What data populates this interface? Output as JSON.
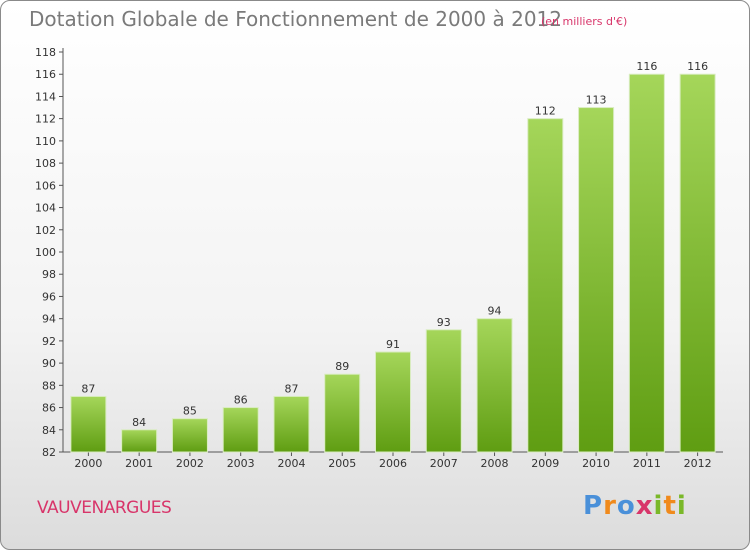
{
  "title": "Dotation Globale de Fonctionnement de 2000 à 2012",
  "subtitle": "(en milliers d'€)",
  "commune": "VAUVENARGUES",
  "logo": {
    "letters": [
      "P",
      "r",
      "o",
      "x",
      "i",
      "t",
      "i"
    ],
    "colors": [
      "#4a90d9",
      "#f08a1c",
      "#4a90d9",
      "#d8356a",
      "#7ab829",
      "#f08a1c",
      "#7ab829"
    ]
  },
  "colors": {
    "bar_light": "#a5d65a",
    "bar_dark": "#5f9d12",
    "accent": "#d8356a"
  },
  "chart_data": {
    "type": "bar",
    "categories": [
      "2000",
      "2001",
      "2002",
      "2003",
      "2004",
      "2005",
      "2006",
      "2007",
      "2008",
      "2009",
      "2010",
      "2011",
      "2012"
    ],
    "values": [
      87,
      84,
      85,
      86,
      87,
      89,
      91,
      93,
      94,
      112,
      113,
      116,
      116
    ],
    "data_labels": [
      "87",
      "84",
      "85",
      "86",
      "87",
      "89",
      "91",
      "93",
      "94",
      "112",
      "113",
      "116",
      "116"
    ],
    "ylim": [
      82,
      118
    ],
    "yticks": [
      82,
      84,
      86,
      88,
      90,
      92,
      94,
      96,
      98,
      100,
      102,
      104,
      106,
      108,
      110,
      112,
      114,
      116,
      118
    ],
    "grid": false,
    "legend": "none"
  }
}
